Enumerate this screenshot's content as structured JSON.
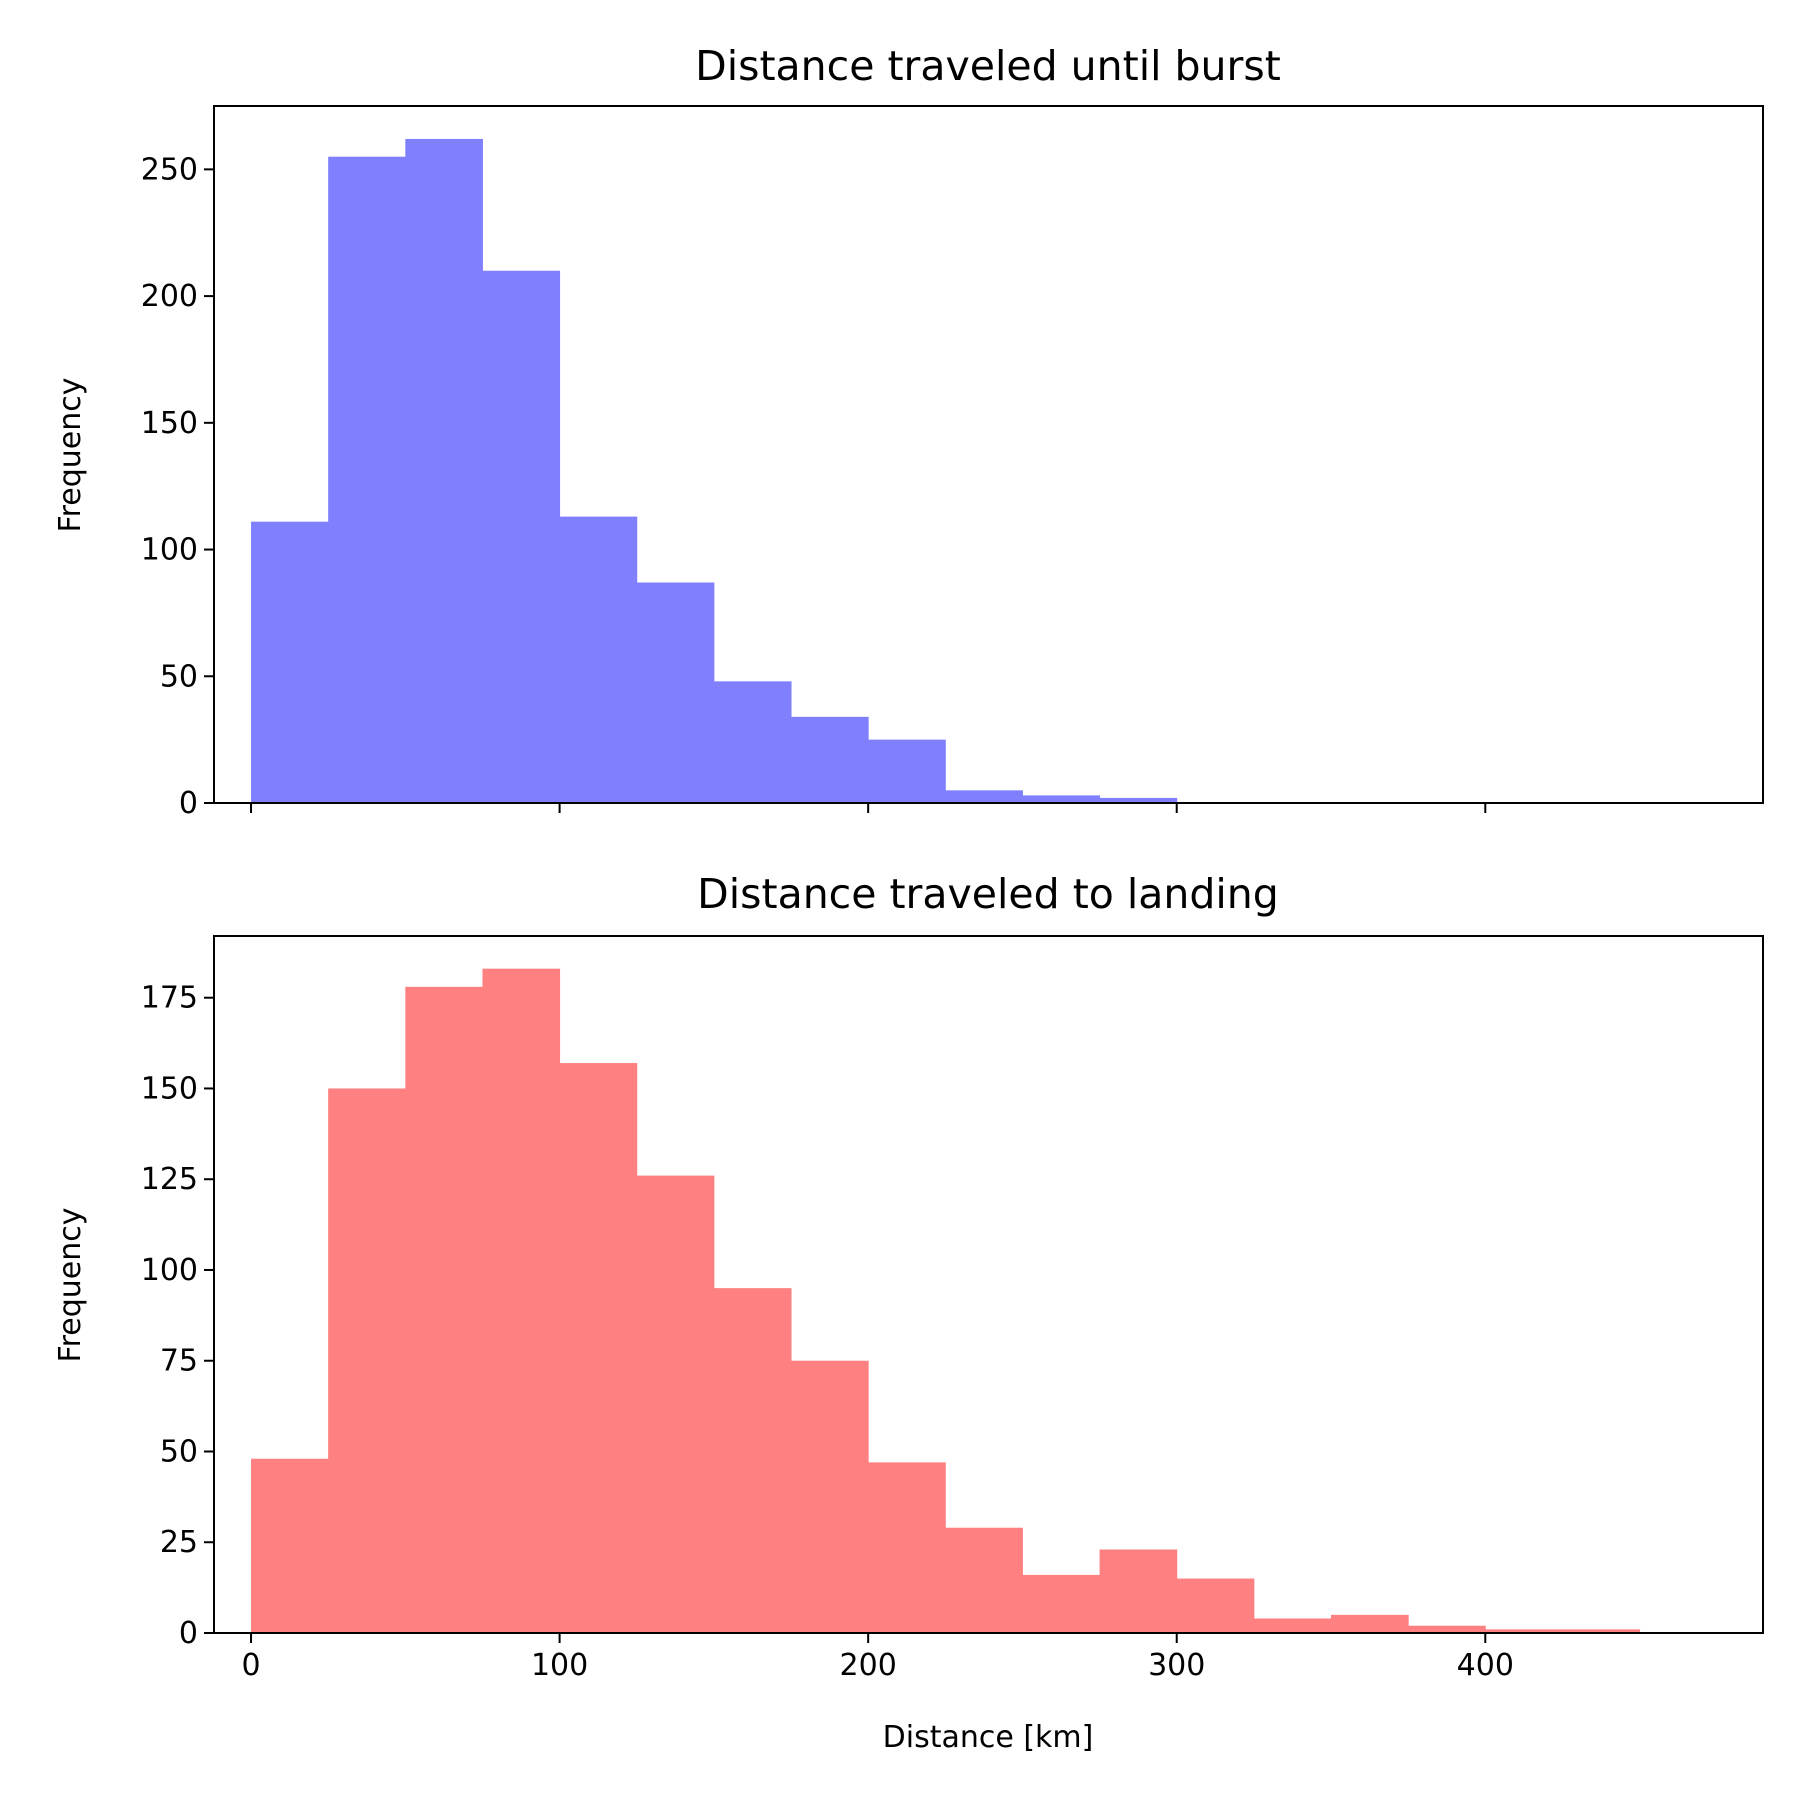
{
  "chart_data": [
    {
      "type": "bar",
      "title": "Distance traveled until burst",
      "xlabel": "",
      "ylabel": "Frequency",
      "color": "#8080ff",
      "bin_edges": [
        0,
        25,
        50,
        75,
        100,
        125,
        150,
        175,
        200,
        225,
        250,
        275,
        300
      ],
      "values": [
        111,
        255,
        262,
        210,
        113,
        87,
        48,
        34,
        25,
        5,
        3,
        2
      ],
      "xlim": [
        -12,
        490
      ],
      "ylim": [
        0,
        275
      ],
      "xticks": [
        0,
        100,
        200,
        300,
        400
      ],
      "yticks": [
        0,
        50,
        100,
        150,
        200,
        250
      ],
      "show_xtick_labels": false,
      "grid": false
    },
    {
      "type": "bar",
      "title": "Distance traveled to landing",
      "xlabel": "Distance [km]",
      "ylabel": "Frequency",
      "color": "#ff8080",
      "bin_edges": [
        0,
        25,
        50,
        75,
        100,
        125,
        150,
        175,
        200,
        225,
        250,
        275,
        300,
        325,
        350,
        375,
        400,
        425,
        450
      ],
      "values": [
        48,
        150,
        178,
        183,
        157,
        126,
        95,
        75,
        47,
        29,
        16,
        23,
        15,
        4,
        5,
        2,
        1,
        1
      ],
      "xlim": [
        -12,
        490
      ],
      "ylim": [
        0,
        192
      ],
      "xticks": [
        0,
        100,
        200,
        300,
        400
      ],
      "yticks": [
        0,
        25,
        50,
        75,
        100,
        125,
        150,
        175
      ],
      "show_xtick_labels": true,
      "grid": false
    }
  ]
}
